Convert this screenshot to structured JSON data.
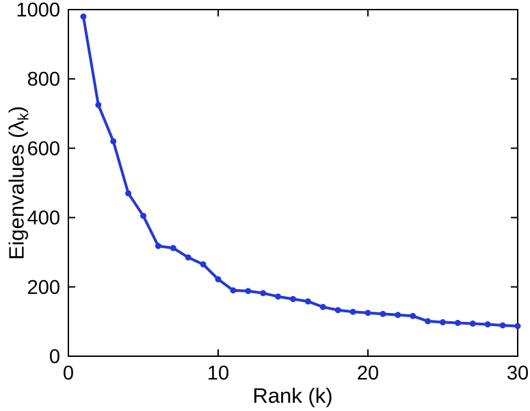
{
  "figure": {
    "background": "#ffffff",
    "axis_color": "#000000"
  },
  "chart_data": {
    "type": "line",
    "title": "",
    "xlabel": "Rank (k)",
    "ylabel": "Eigenvalues (λk)",
    "ylabel_parts": {
      "main": "Eigenvalues (λ",
      "sub": "k",
      "end": ")"
    },
    "x": [
      1,
      2,
      3,
      4,
      5,
      6,
      7,
      8,
      9,
      10,
      11,
      12,
      13,
      14,
      15,
      16,
      17,
      18,
      19,
      20,
      21,
      22,
      23,
      24,
      25,
      26,
      27,
      28,
      29,
      30
    ],
    "values": [
      980,
      725,
      620,
      470,
      405,
      318,
      312,
      285,
      265,
      222,
      190,
      188,
      182,
      172,
      165,
      158,
      142,
      133,
      128,
      125,
      122,
      119,
      116,
      101,
      98,
      96,
      94,
      92,
      89,
      87
    ],
    "xlim": [
      0,
      30
    ],
    "ylim": [
      0,
      1000
    ],
    "xticks": [
      0,
      10,
      20,
      30
    ],
    "yticks": [
      0,
      200,
      400,
      600,
      800,
      1000
    ],
    "grid": false,
    "legend": "none",
    "box": true,
    "tick_direction": "in",
    "line_color": "#2438d8",
    "line_width": 4,
    "marker": "circle",
    "marker_radius": 4.5
  }
}
